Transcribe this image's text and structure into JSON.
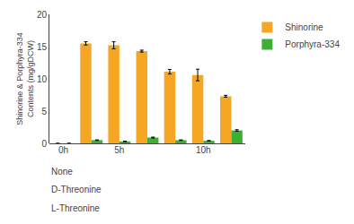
{
  "chart_data": {
    "type": "bar",
    "ylabel": "Shinorine & Porphyra-334\nContents (mg/gDCW)",
    "categories": [
      "0h",
      null,
      "5h",
      null,
      null,
      "10h",
      null
    ],
    "series": [
      {
        "name": "Shinorine",
        "color": "#F5A623",
        "values": [
          0.0,
          15.5,
          15.2,
          14.3,
          11.1,
          10.6,
          7.3
        ],
        "errors": [
          0.0,
          0.25,
          0.55,
          0.15,
          0.35,
          0.9,
          0.15
        ]
      },
      {
        "name": "Porphyra-334",
        "color": "#3CB034",
        "values": [
          0.0,
          0.5,
          0.3,
          0.9,
          0.5,
          0.4,
          2.0
        ],
        "errors": [
          0.0,
          0.04,
          0.04,
          0.07,
          0.04,
          0.04,
          0.12
        ]
      }
    ],
    "ylim": [
      0,
      20
    ],
    "yticks": [
      0,
      5,
      10,
      15,
      20
    ],
    "grid": false,
    "legend": "upper right",
    "annotations": [
      "None",
      "D-Threonine",
      "L-Threonine"
    ]
  }
}
